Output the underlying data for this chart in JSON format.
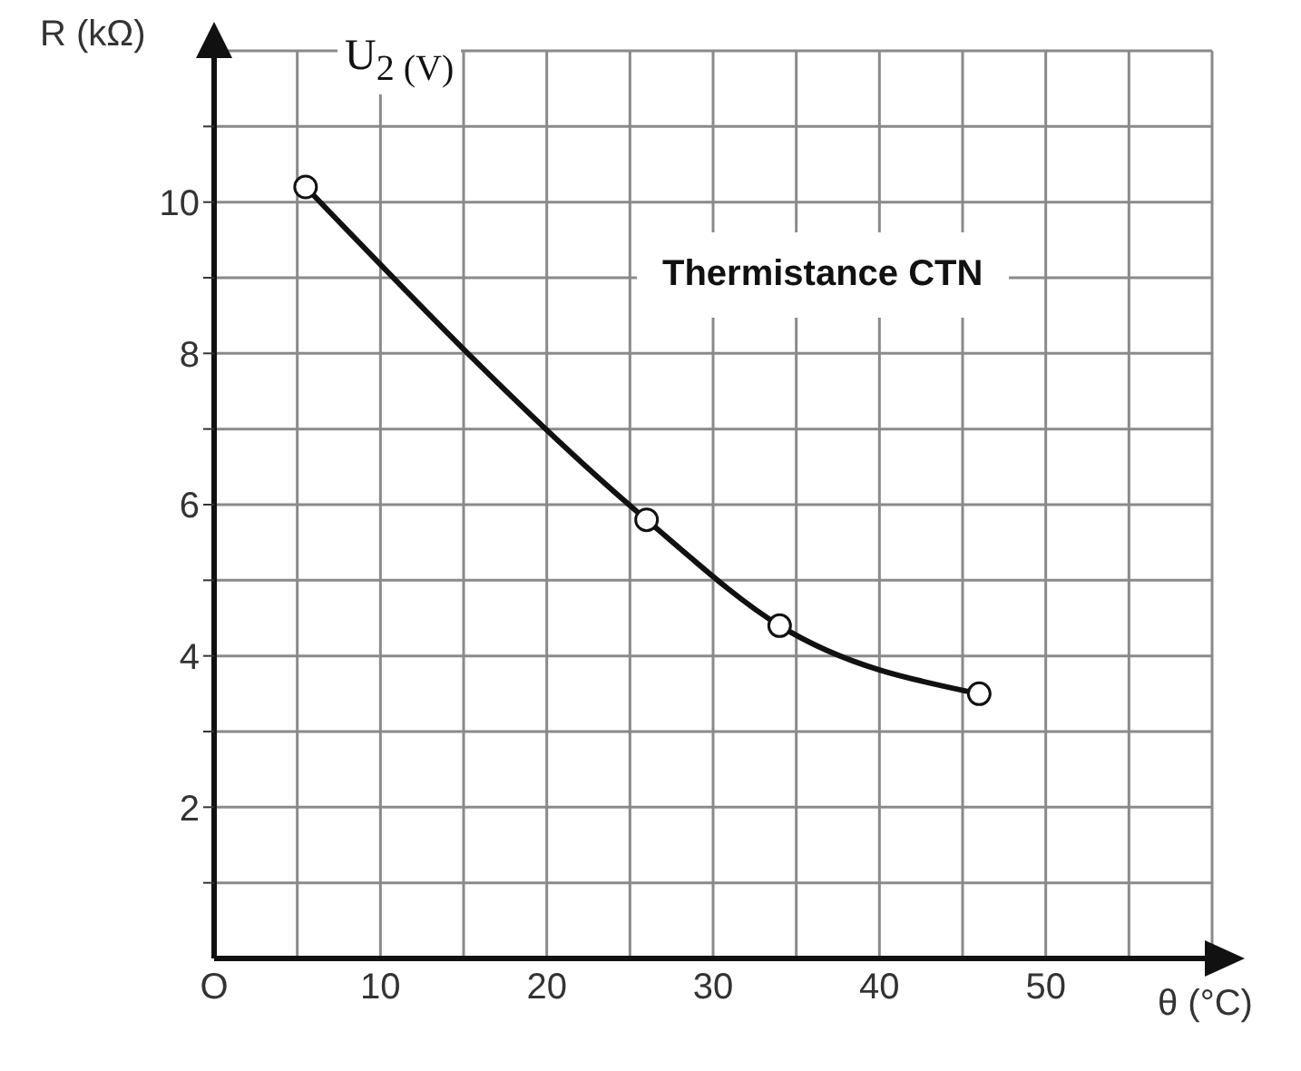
{
  "chart_data": {
    "type": "line",
    "xlabel": "θ (°C)",
    "ylabel": "R (kΩ)",
    "annotations": [
      "U$_{2 (V)}$",
      "Thermistance CTN"
    ],
    "x": [
      5.5,
      26,
      34,
      46
    ],
    "series": [
      {
        "color": "#111111",
        "values": [
          10.2,
          5.8,
          4.4,
          3.5
        ]
      }
    ],
    "xlim": [
      0,
      60
    ],
    "ylim": [
      0,
      12
    ],
    "xticks": [
      {
        "value": 0,
        "label": "O"
      },
      {
        "value": 5,
        "label": null
      },
      10,
      {
        "value": 15,
        "label": null
      },
      20,
      {
        "value": 25,
        "label": null
      },
      30,
      {
        "value": 35,
        "label": null
      },
      40,
      {
        "value": 45,
        "label": null
      },
      50,
      {
        "value": 55,
        "label": null
      }
    ],
    "yticks": [
      {
        "value": 1,
        "label": null
      },
      2,
      {
        "value": 3,
        "label": null
      },
      4,
      {
        "value": 5,
        "label": null
      },
      6,
      {
        "value": 7,
        "label": null
      },
      8,
      {
        "value": 9,
        "label": null
      },
      10,
      {
        "value": 11,
        "label": null
      }
    ],
    "grid": true,
    "marker": "circle",
    "line_style": "solid"
  }
}
